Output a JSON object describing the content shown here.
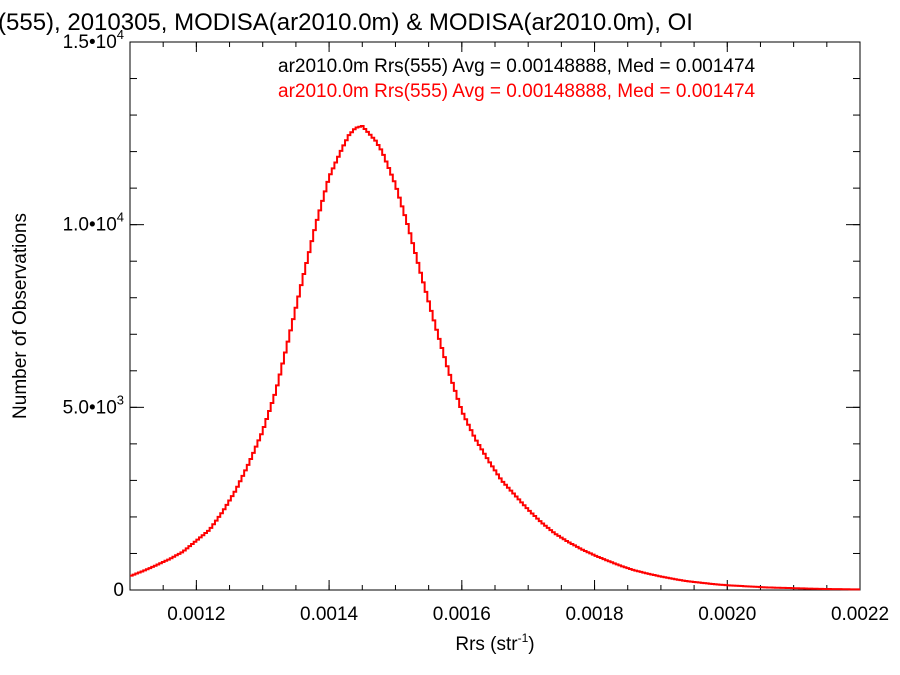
{
  "chart_data": {
    "type": "line",
    "title": "(555), 2010305, MODISA(ar2010.0m) & MODISA(ar2010.0m), OI",
    "xlabel": "Rrs (str",
    "xlabel_sup": "-1",
    "xlabel_end": ")",
    "ylabel": "Number of Observations",
    "xlim": [
      0.0011,
      0.0022
    ],
    "ylim": [
      0,
      15000
    ],
    "x_ticks": [
      {
        "value": 0.0012,
        "label": "0.0012"
      },
      {
        "value": 0.0014,
        "label": "0.0014"
      },
      {
        "value": 0.0016,
        "label": "0.0016"
      },
      {
        "value": 0.0018,
        "label": "0.0018"
      },
      {
        "value": 0.002,
        "label": "0.0020"
      },
      {
        "value": 0.0022,
        "label": "0.0022"
      }
    ],
    "y_ticks": [
      {
        "value": 0,
        "mantissa": "0",
        "exp": ""
      },
      {
        "value": 5000,
        "mantissa": "5.0•10",
        "exp": "3"
      },
      {
        "value": 10000,
        "mantissa": "1.0•10",
        "exp": "4"
      },
      {
        "value": 15000,
        "mantissa": "1.5•10",
        "exp": "4"
      }
    ],
    "legend": [
      {
        "text": "ar2010.0m Rrs(555) Avg = 0.00148888, Med = 0.001474",
        "color": "#000000"
      },
      {
        "text": "ar2010.0m Rrs(555) Avg = 0.00148888, Med = 0.001474",
        "color": "#ff0000"
      }
    ],
    "series": [
      {
        "color": "#ff0000",
        "x": [
          0.0011,
          0.00112,
          0.00114,
          0.00116,
          0.00118,
          0.0012,
          0.00122,
          0.00124,
          0.00126,
          0.00128,
          0.0013,
          0.00132,
          0.00134,
          0.00136,
          0.00138,
          0.0014,
          0.00142,
          0.00143,
          0.00144,
          0.00145,
          0.00146,
          0.00147,
          0.00148,
          0.0015,
          0.00152,
          0.00154,
          0.00156,
          0.00158,
          0.0016,
          0.00162,
          0.00164,
          0.00166,
          0.00168,
          0.0017,
          0.00172,
          0.00174,
          0.00176,
          0.00178,
          0.0018,
          0.00182,
          0.00184,
          0.00186,
          0.00188,
          0.0019,
          0.00192,
          0.00194,
          0.00196,
          0.00198,
          0.002,
          0.00202,
          0.00204,
          0.00206,
          0.00208,
          0.0021,
          0.00212,
          0.00214,
          0.00216,
          0.00218,
          0.0022
        ],
        "values": [
          380,
          520,
          680,
          850,
          1050,
          1350,
          1650,
          2150,
          2750,
          3500,
          4350,
          5450,
          6950,
          8500,
          10000,
          11300,
          12100,
          12450,
          12650,
          12700,
          12500,
          12300,
          12000,
          11100,
          9900,
          8550,
          7250,
          6000,
          4900,
          4150,
          3550,
          3000,
          2600,
          2200,
          1850,
          1550,
          1320,
          1120,
          950,
          800,
          660,
          540,
          450,
          370,
          300,
          240,
          200,
          160,
          130,
          110,
          90,
          70,
          60,
          50,
          40,
          30,
          25,
          20,
          15
        ]
      }
    ]
  }
}
